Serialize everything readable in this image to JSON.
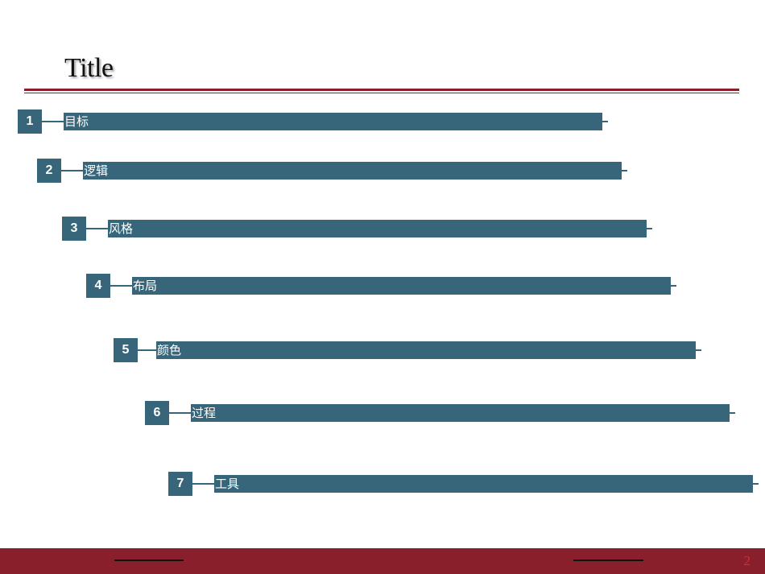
{
  "slide": {
    "title": "Title",
    "page_number": "2"
  },
  "items": [
    {
      "number": "1",
      "label": "目标"
    },
    {
      "number": "2",
      "label": "逻辑"
    },
    {
      "number": "3",
      "label": "风格"
    },
    {
      "number": "4",
      "label": "布局"
    },
    {
      "number": "5",
      "label": "颜色"
    },
    {
      "number": "6",
      "label": "过程"
    },
    {
      "number": "7",
      "label": "工具"
    }
  ],
  "colors": {
    "accent": "#8a1f2c",
    "bar": "#37667a"
  }
}
